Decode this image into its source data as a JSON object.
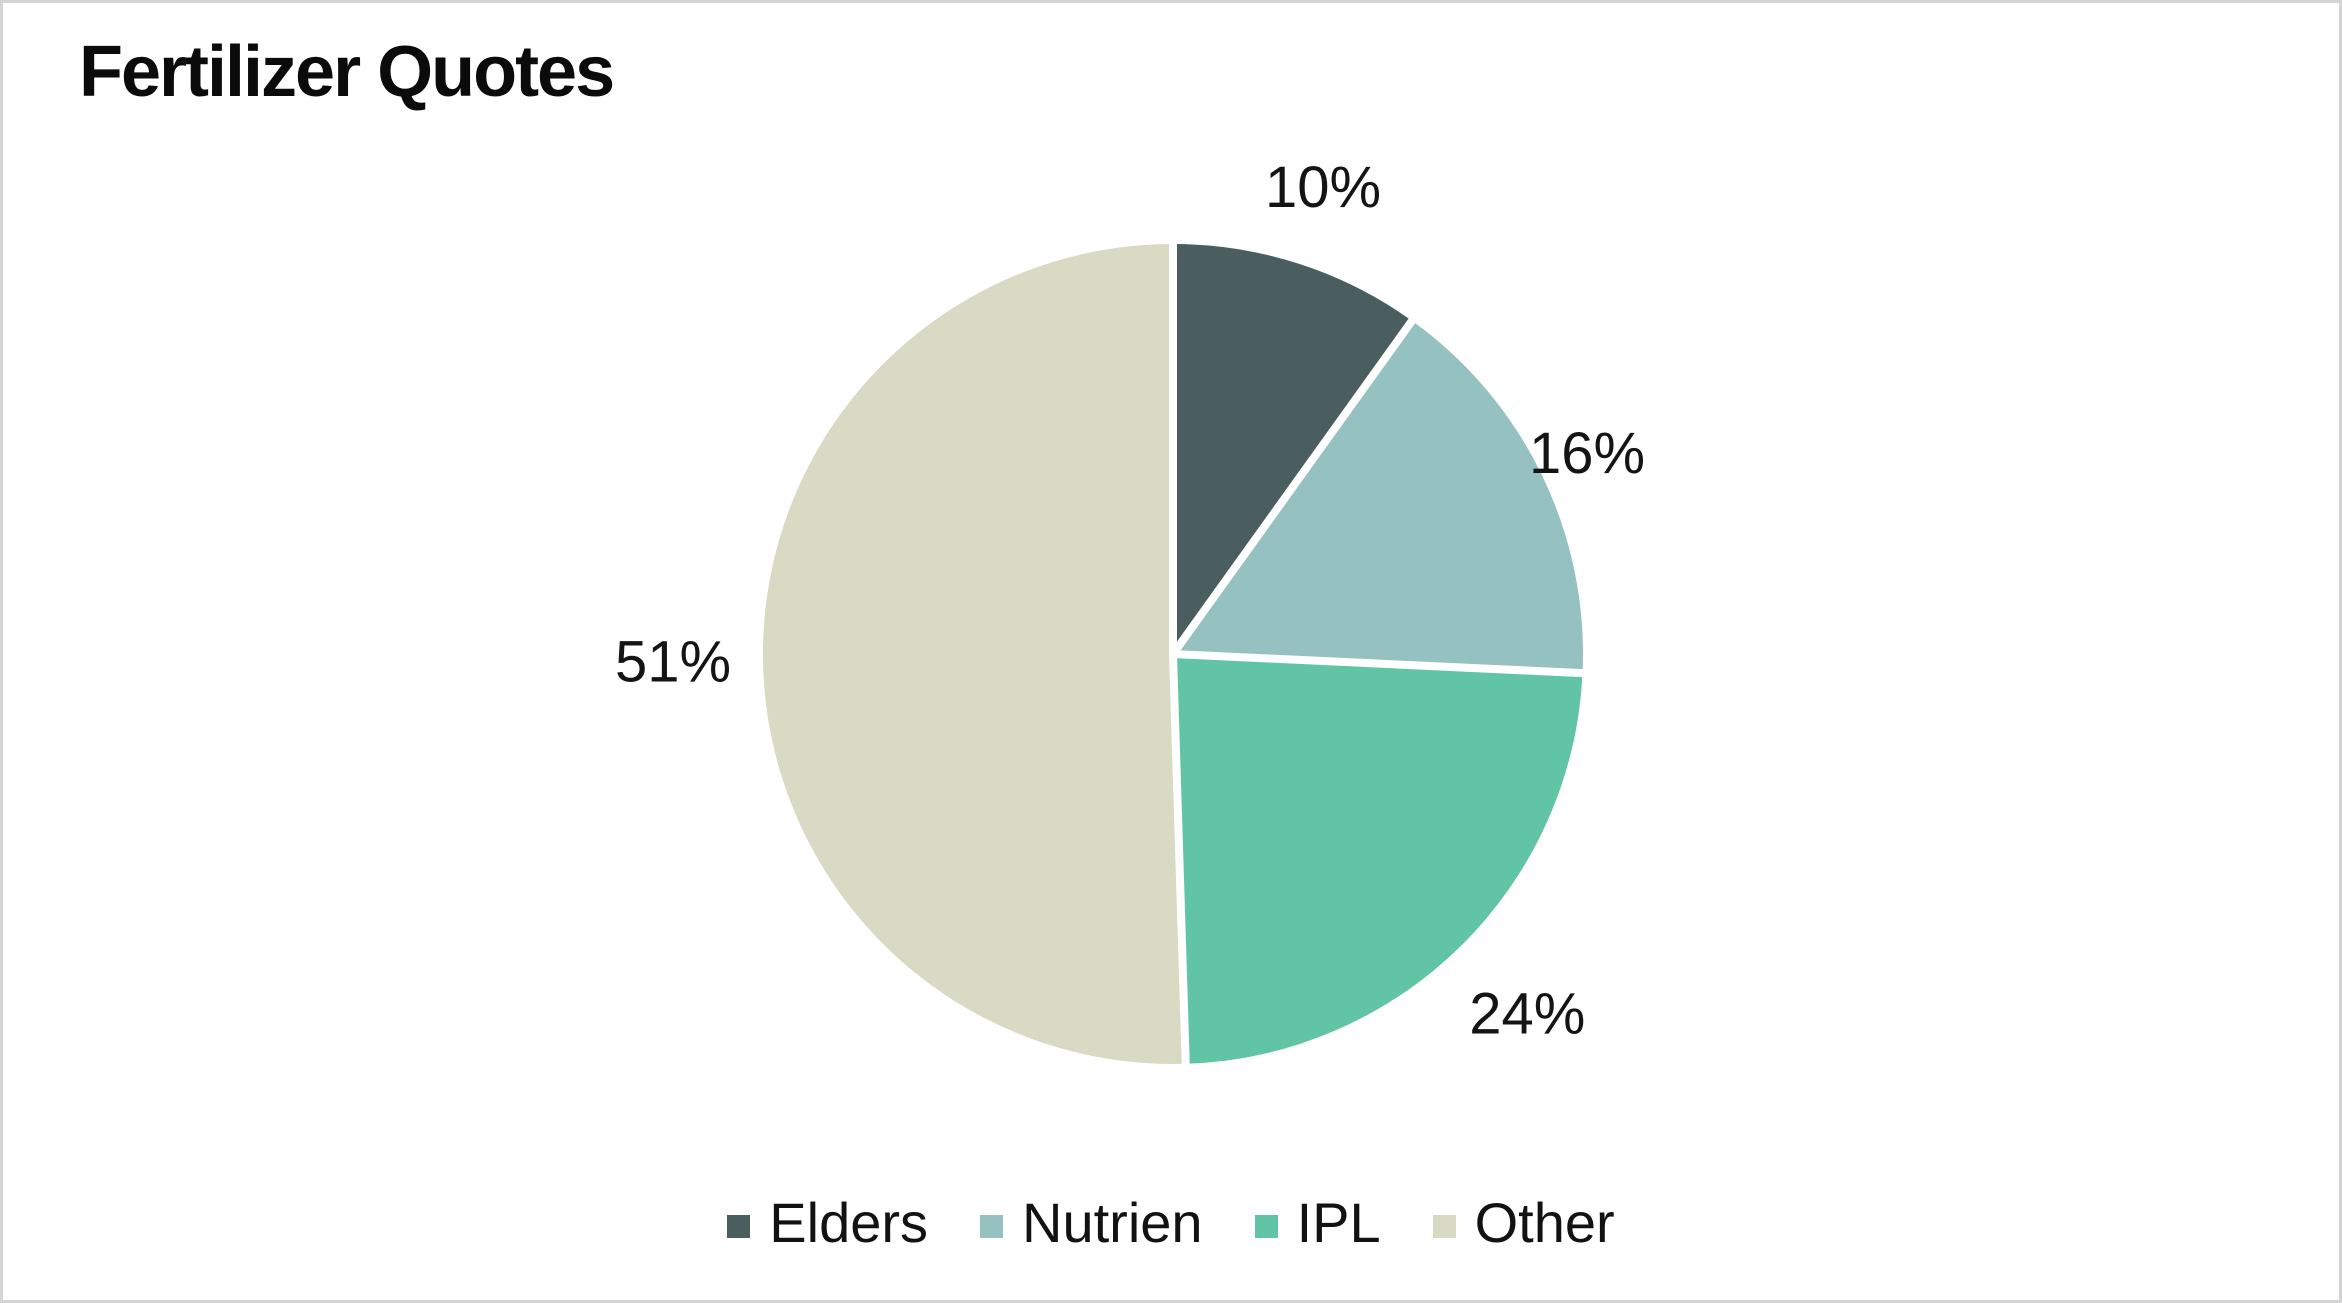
{
  "page": {
    "background_color": "#ffffff",
    "border_color": "#d4d4d4"
  },
  "chart_data": {
    "type": "pie",
    "title": "Fertilizer Quotes",
    "categories": [
      "Elders",
      "Nutrien",
      "IPL",
      "Other"
    ],
    "values": [
      10,
      16,
      24,
      51
    ],
    "unit": "percent",
    "data_labels": [
      "10%",
      "16%",
      "24%",
      "51%"
    ],
    "colors": [
      "#4A5D5F",
      "#95C1C1",
      "#61C4A4",
      "#D8DAC4"
    ],
    "slice_divider_color": "#ffffff",
    "label_color": "#141414",
    "start_angle": "top",
    "direction": "clockwise",
    "legend_position": "bottom",
    "legend_entries": [
      "Elders",
      "Nutrien",
      "IPL",
      "Other"
    ]
  }
}
